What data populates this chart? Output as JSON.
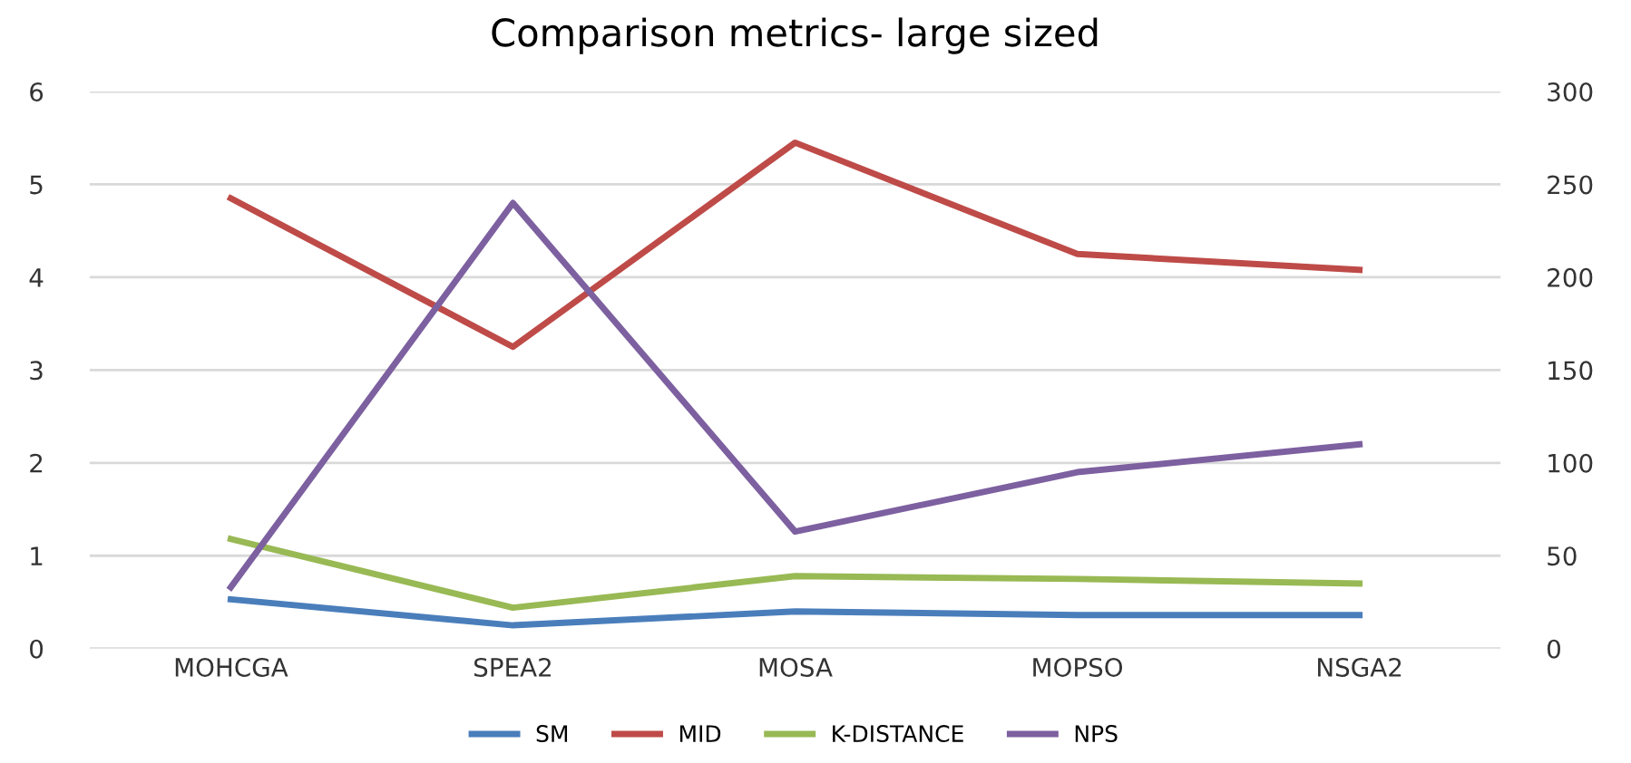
{
  "chart_data": {
    "type": "line",
    "title": "Comparison metrics- large sized",
    "categories": [
      "MOHCGA",
      "SPEA2",
      "MOSA",
      "MOPSO",
      "NSGA2"
    ],
    "series": [
      {
        "name": "SM",
        "color": "#4a7ebb",
        "values": [
          0.53,
          0.25,
          0.4,
          0.36,
          0.36
        ]
      },
      {
        "name": "MID",
        "color": "#be4b48",
        "values": [
          4.85,
          3.25,
          5.45,
          4.25,
          4.08
        ]
      },
      {
        "name": "K-DISTANCE",
        "color": "#98b954",
        "values": [
          1.18,
          0.44,
          0.78,
          0.75,
          0.7
        ]
      },
      {
        "name": "NPS",
        "color": "#7d60a0",
        "values": [
          33,
          240,
          63,
          95,
          110
        ],
        "axis": "y2"
      }
    ],
    "ylim": [
      0,
      6
    ],
    "yticks": [
      0,
      1,
      2,
      3,
      4,
      5,
      6
    ],
    "y2lim": [
      0,
      300
    ],
    "y2ticks": [
      0,
      50,
      100,
      150,
      200,
      250,
      300
    ],
    "grid": "y",
    "legend": "bottom",
    "marker": "none",
    "line_style": "solid"
  }
}
